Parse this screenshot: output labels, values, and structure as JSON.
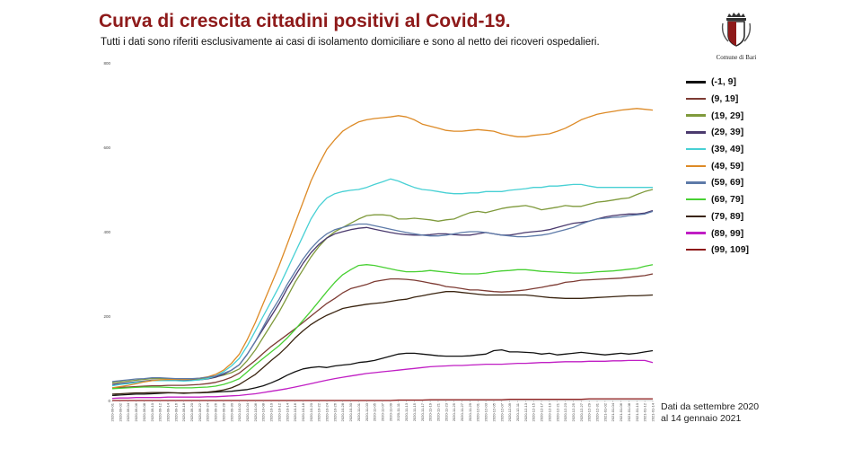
{
  "header": {
    "title": "Curva di crescita cittadini positivi al Covid-19.",
    "subtitle": "Tutti i dati sono riferiti esclusivamente ai casi di isolamento domiciliare e sono al netto dei ricoveri ospedalieri."
  },
  "logo": {
    "text": "Comune di Bari"
  },
  "note": {
    "line1": "Dati da settembre 2020",
    "line2": "al 14 gennaio 2021"
  },
  "chart_data": {
    "type": "line",
    "title": "Curva di crescita cittadini positivi al Covid-19.",
    "xlabel": "",
    "ylabel": "",
    "ylim": [
      0,
      800
    ],
    "yticks": [
      0,
      200,
      400,
      600,
      800
    ],
    "grid": false,
    "legend_position": "right",
    "x": [
      "2020-09-01",
      "2020-09-02",
      "2020-09-04",
      "2020-09-06",
      "2020-09-08",
      "2020-09-10",
      "2020-09-12",
      "2020-09-14",
      "2020-09-16",
      "2020-09-18",
      "2020-09-20",
      "2020-09-22",
      "2020-09-24",
      "2020-09-26",
      "2020-09-28",
      "2020-09-30",
      "2020-10-02",
      "2020-10-04",
      "2020-10-06",
      "2020-10-08",
      "2020-10-10",
      "2020-10-12",
      "2020-10-14",
      "2020-10-16",
      "2020-10-18",
      "2020-10-20",
      "2020-10-22",
      "2020-10-24",
      "2020-10-26",
      "2020-10-28",
      "2020-10-30",
      "2020-11-01",
      "2020-11-03",
      "2020-11-05",
      "2020-11-07",
      "2020-11-09",
      "2020-11-11",
      "2020-11-13",
      "2020-11-15",
      "2020-11-17",
      "2020-11-19",
      "2020-11-21",
      "2020-11-23",
      "2020-11-25",
      "2020-11-27",
      "2020-11-29",
      "2020-12-01",
      "2020-12-03",
      "2020-12-05",
      "2020-12-07",
      "2020-12-09",
      "2020-12-11",
      "2020-12-13",
      "2020-12-15",
      "2020-12-17",
      "2020-12-19",
      "2020-12-21",
      "2020-12-23",
      "2020-12-25",
      "2020-12-27",
      "2020-12-29",
      "2020-12-31",
      "2021-01-02",
      "2021-01-04",
      "2021-01-06",
      "2021-01-08",
      "2021-01-10",
      "2021-01-12",
      "2021-01-14"
    ],
    "series": [
      {
        "name": "(-1, 9]",
        "color": "#111111",
        "values": [
          12,
          13,
          14,
          15,
          15,
          16,
          17,
          18,
          18,
          17,
          18,
          18,
          19,
          20,
          21,
          22,
          24,
          26,
          30,
          35,
          42,
          50,
          60,
          68,
          75,
          78,
          80,
          78,
          82,
          84,
          86,
          90,
          92,
          95,
          100,
          105,
          110,
          112,
          112,
          110,
          108,
          106,
          105,
          105,
          105,
          106,
          108,
          110,
          118,
          120,
          115,
          115,
          114,
          113,
          110,
          112,
          108,
          110,
          112,
          114,
          112,
          110,
          108,
          110,
          112,
          110,
          112,
          115,
          118
        ]
      },
      {
        "name": "(9, 19]",
        "color": "#7d3b33",
        "values": [
          30,
          31,
          32,
          33,
          34,
          35,
          35,
          36,
          36,
          36,
          37,
          38,
          40,
          43,
          48,
          55,
          65,
          80,
          95,
          112,
          128,
          142,
          156,
          170,
          185,
          200,
          215,
          230,
          242,
          255,
          265,
          270,
          275,
          282,
          285,
          288,
          288,
          287,
          285,
          282,
          278,
          275,
          270,
          268,
          265,
          262,
          262,
          260,
          258,
          257,
          258,
          260,
          262,
          265,
          268,
          272,
          275,
          280,
          282,
          285,
          286,
          287,
          288,
          289,
          290,
          292,
          294,
          296,
          300
        ]
      },
      {
        "name": "(19, 29]",
        "color": "#7f9a3c",
        "values": [
          42,
          44,
          46,
          48,
          50,
          52,
          52,
          52,
          51,
          50,
          50,
          51,
          53,
          56,
          60,
          66,
          75,
          95,
          120,
          150,
          180,
          210,
          245,
          280,
          310,
          340,
          365,
          385,
          400,
          410,
          420,
          430,
          438,
          440,
          440,
          438,
          430,
          430,
          432,
          430,
          428,
          425,
          428,
          430,
          438,
          445,
          448,
          445,
          450,
          455,
          458,
          460,
          462,
          458,
          452,
          455,
          458,
          462,
          460,
          460,
          465,
          470,
          472,
          475,
          478,
          480,
          488,
          495,
          500
        ]
      },
      {
        "name": "(29, 39]",
        "color": "#4b3a6e",
        "values": [
          38,
          40,
          42,
          44,
          46,
          48,
          48,
          48,
          48,
          47,
          48,
          49,
          51,
          55,
          62,
          72,
          85,
          110,
          140,
          170,
          200,
          230,
          265,
          295,
          325,
          350,
          370,
          385,
          395,
          400,
          405,
          408,
          410,
          406,
          402,
          398,
          395,
          393,
          392,
          392,
          393,
          395,
          395,
          393,
          392,
          392,
          395,
          398,
          395,
          392,
          392,
          395,
          398,
          400,
          402,
          405,
          410,
          415,
          420,
          422,
          425,
          430,
          435,
          438,
          440,
          442,
          442,
          444,
          450
        ]
      },
      {
        "name": "(39, 49]",
        "color": "#47d0d4",
        "values": [
          35,
          38,
          40,
          43,
          45,
          47,
          47,
          47,
          47,
          46,
          47,
          49,
          52,
          58,
          68,
          82,
          100,
          130,
          165,
          200,
          235,
          270,
          310,
          350,
          390,
          430,
          460,
          480,
          490,
          495,
          498,
          500,
          505,
          512,
          518,
          525,
          520,
          512,
          505,
          500,
          498,
          495,
          492,
          490,
          490,
          492,
          492,
          495,
          495,
          495,
          498,
          500,
          502,
          505,
          505,
          508,
          508,
          510,
          512,
          512,
          508,
          505,
          505,
          505,
          505,
          505,
          505,
          505,
          505
        ]
      },
      {
        "name": "(49, 59]",
        "color": "#dd8a26",
        "values": [
          30,
          33,
          36,
          40,
          44,
          47,
          49,
          50,
          50,
          50,
          51,
          53,
          56,
          62,
          72,
          88,
          110,
          145,
          185,
          230,
          275,
          320,
          370,
          420,
          470,
          520,
          560,
          595,
          618,
          638,
          650,
          660,
          665,
          668,
          670,
          672,
          675,
          672,
          665,
          655,
          650,
          645,
          640,
          638,
          638,
          640,
          642,
          640,
          638,
          632,
          628,
          625,
          625,
          628,
          630,
          632,
          638,
          645,
          655,
          665,
          672,
          678,
          682,
          685,
          688,
          690,
          692,
          690,
          688
        ]
      },
      {
        "name": "(59, 69]",
        "color": "#5d7aa8",
        "values": [
          45,
          47,
          49,
          51,
          52,
          54,
          54,
          53,
          52,
          52,
          52,
          53,
          55,
          58,
          64,
          72,
          85,
          110,
          140,
          175,
          210,
          240,
          275,
          305,
          335,
          360,
          380,
          395,
          405,
          410,
          415,
          418,
          418,
          414,
          410,
          406,
          402,
          398,
          395,
          392,
          390,
          390,
          392,
          395,
          398,
          400,
          400,
          398,
          395,
          392,
          390,
          388,
          388,
          390,
          392,
          395,
          400,
          405,
          410,
          418,
          425,
          430,
          432,
          434,
          435,
          438,
          440,
          442,
          448
        ]
      },
      {
        "name": "(69, 79]",
        "color": "#48d033",
        "values": [
          28,
          29,
          30,
          31,
          32,
          32,
          32,
          31,
          30,
          30,
          30,
          31,
          32,
          34,
          38,
          44,
          52,
          68,
          85,
          100,
          115,
          130,
          148,
          168,
          190,
          212,
          235,
          258,
          280,
          298,
          310,
          320,
          322,
          320,
          316,
          312,
          308,
          305,
          305,
          306,
          308,
          306,
          304,
          302,
          300,
          300,
          300,
          302,
          305,
          307,
          308,
          310,
          310,
          308,
          306,
          305,
          304,
          303,
          302,
          302,
          303,
          305,
          306,
          307,
          309,
          311,
          313,
          318,
          322
        ]
      },
      {
        "name": "(79, 89]",
        "color": "#3a2410",
        "values": [
          15,
          16,
          17,
          18,
          18,
          19,
          19,
          19,
          18,
          18,
          18,
          19,
          20,
          22,
          25,
          30,
          38,
          50,
          62,
          78,
          95,
          110,
          128,
          148,
          165,
          180,
          192,
          202,
          210,
          218,
          222,
          225,
          228,
          230,
          232,
          235,
          238,
          240,
          245,
          248,
          252,
          255,
          258,
          258,
          256,
          254,
          252,
          250,
          250,
          250,
          250,
          250,
          250,
          248,
          246,
          244,
          243,
          242,
          242,
          242,
          243,
          244,
          245,
          246,
          247,
          248,
          248,
          249,
          250
        ]
      },
      {
        "name": "(89, 99]",
        "color": "#c01ec4",
        "values": [
          5,
          6,
          6,
          7,
          7,
          7,
          7,
          8,
          8,
          8,
          8,
          8,
          9,
          9,
          10,
          11,
          12,
          14,
          16,
          19,
          22,
          25,
          28,
          32,
          36,
          40,
          44,
          48,
          52,
          55,
          58,
          61,
          64,
          66,
          68,
          70,
          72,
          74,
          76,
          78,
          80,
          81,
          82,
          83,
          83,
          84,
          85,
          86,
          86,
          86,
          87,
          88,
          88,
          89,
          90,
          90,
          91,
          92,
          92,
          92,
          93,
          93,
          93,
          94,
          94,
          95,
          95,
          95,
          90
        ]
      },
      {
        "name": "(99, 109]",
        "color": "#8e1a1a",
        "values": [
          0,
          0,
          0,
          0,
          0,
          0,
          0,
          0,
          0,
          0,
          0,
          0,
          0,
          0,
          0,
          0,
          0,
          0,
          0,
          0,
          0,
          0,
          0,
          0,
          0,
          0,
          0,
          0,
          0,
          0,
          0,
          0,
          0,
          0,
          0,
          0,
          1,
          1,
          1,
          1,
          2,
          2,
          2,
          2,
          2,
          2,
          2,
          2,
          2,
          2,
          3,
          3,
          3,
          3,
          3,
          3,
          3,
          3,
          3,
          3,
          4,
          4,
          4,
          4,
          4,
          4,
          4,
          4,
          4
        ]
      }
    ]
  }
}
